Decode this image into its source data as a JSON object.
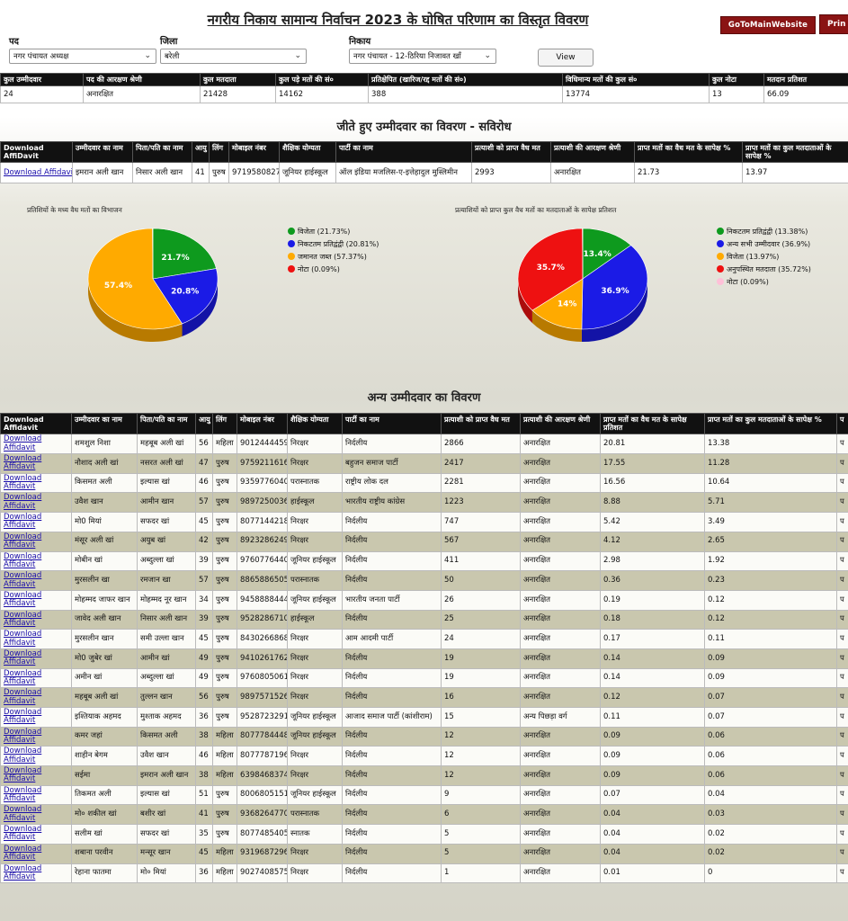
{
  "header": {
    "title": "नगरीय निकाय सामान्य निर्वाचन 2023 के घोषित परिणाम का विस्तृत विवरण",
    "main_website_label": "GoToMainWebsite",
    "print_label": "Prin"
  },
  "filters": {
    "post_label": "पद",
    "post_value": "नगर पंचायत अध्यक्ष",
    "district_label": "जिला",
    "district_value": "बरेली",
    "body_label": "निकाय",
    "body_value": "नगर पंचायत - 12-ठिरिया निजावत खाँ",
    "view_label": "View"
  },
  "summary": {
    "headers": [
      "कुल उम्मीदवार",
      "पद की आरक्षण श्रेणी",
      "कुल मतदाता",
      "कुल पड़े मतों की सं०",
      "प्रतिक्षेपित (खारिज/रद्द मतों की सं०)",
      "विधिमान्य मतों की कुल सं०",
      "कुल नोटा",
      "मतदान प्रतिशत"
    ],
    "values": [
      "24",
      "अनारक्षित",
      "21428",
      "14162",
      "388",
      "13774",
      "13",
      "66.09"
    ]
  },
  "winner_section_title": "जीते हुए उम्मीदवार का विवरण - सविरोध",
  "winner": {
    "headers": [
      "Download AffiDavit",
      "उम्मीदवार का नाम",
      "पिता/पति का नाम",
      "आयु",
      "लिंग",
      "मोबाइल नंबर",
      "शैक्षिक योग्यता",
      "पार्टी का नाम",
      "प्रत्याशी को प्राप्त वैध मत",
      "प्रत्याशी की आरक्षण श्रेणी",
      "प्राप्त मतों का वैध मत के सापेक्ष %",
      "प्राप्त मतों का कुल मतदाताओं के सापेक्ष %"
    ],
    "row": [
      "Download Affidavit",
      "इमरान अली खान",
      "निसार अली खान",
      "41",
      "पुरुष",
      "9719580827",
      "जूनियर हाईस्कूल",
      "ऑल इंडिया मजलिस-ए-इत्तेहादुल मुस्लिमीन",
      "2993",
      "अनारक्षित",
      "21.73",
      "13.97"
    ]
  },
  "chart_data": [
    {
      "type": "pie",
      "title": "प्रतिशियों के मध्य वैध मतों का विभाजन",
      "legend": "right",
      "labels": [
        "विजेता (21.73%)",
        "निकटतम प्रतिद्वंद्वी (20.81%)",
        "जमानत जब्त (57.37%)",
        "नोटा (0.09%)"
      ],
      "values": [
        21.73,
        20.81,
        57.37,
        0.09
      ],
      "slice_labels": [
        "21.7%",
        "20.8%",
        "57.4%",
        ""
      ],
      "colors": [
        "#0e9a1e",
        "#1b1be6",
        "#ffaa00",
        "#ee1111"
      ]
    },
    {
      "type": "pie",
      "title": "प्रत्याशियों को प्राप्त कुल वैध मतों का मतदाताओं के सापेक्ष प्रतिशत",
      "legend": "right",
      "labels": [
        "निकटतम प्रतिद्वंद्वी (13.38%)",
        "अन्य सभी उम्मीदवार (36.9%)",
        "विजेता (13.97%)",
        "अनुपस्थित मतदाता (35.72%)",
        "नोटा (0.09%)"
      ],
      "values": [
        13.38,
        36.9,
        13.97,
        35.72,
        0.09
      ],
      "slice_labels": [
        "13.4%",
        "36.9%",
        "14%",
        "35.7%",
        ""
      ],
      "colors": [
        "#0e9a1e",
        "#1b1be6",
        "#ffaa00",
        "#ee1111",
        "#ffc0d8"
      ]
    }
  ],
  "others_section_title": "अन्य उम्मीदवार का विवरण",
  "others": {
    "headers": [
      "Download Affidavit",
      "उम्मीदवार का नाम",
      "पिता/पति का नाम",
      "आयु",
      "लिंग",
      "मोबाइल नंबर",
      "शैक्षिक योग्यता",
      "पार्टी का नाम",
      "प्रत्याशी को प्राप्त वैध मत",
      "प्रत्याशी की आरक्षण श्रेणी",
      "प्राप्त मतों का वैध मत के सापेक्ष प्रतिशत",
      "प्राप्त मतों का कुल मतदाताओं के सापेक्ष %",
      "प"
    ],
    "rows": [
      [
        "Download Affidavit",
        "शमशुल निशा",
        "महबूब अली खां",
        "56",
        "महिला",
        "9012444459",
        "निरक्षर",
        "निर्दलीय",
        "2866",
        "अनारक्षित",
        "20.81",
        "13.38",
        "प"
      ],
      [
        "Download Affidavit",
        "नौशाद अली खां",
        "नसरत अली खां",
        "47",
        "पुरुष",
        "9759211616",
        "निरक्षर",
        "बहुजन समाज पार्टी",
        "2417",
        "अनारक्षित",
        "17.55",
        "11.28",
        "प"
      ],
      [
        "Download Affidavit",
        "किसमत अली",
        "इल्यास खां",
        "46",
        "पुरुष",
        "9359776040",
        "परास्नातक",
        "राष्ट्रीय लोक दल",
        "2281",
        "अनारक्षित",
        "16.56",
        "10.64",
        "प"
      ],
      [
        "Download Affidavit",
        "उवैश खान",
        "आमीन खान",
        "57",
        "पुरुष",
        "9897250036",
        "हाईस्कूल",
        "भारतीय राष्ट्रीय कांग्रेस",
        "1223",
        "अनारक्षित",
        "8.88",
        "5.71",
        "प"
      ],
      [
        "Download Affidavit",
        "मो0 मियां",
        "सफदर खां",
        "45",
        "पुरुष",
        "8077144218",
        "निरक्षर",
        "निर्दलीय",
        "747",
        "अनारक्षित",
        "5.42",
        "3.49",
        "प"
      ],
      [
        "Download Affidavit",
        "मंसूर अली खां",
        "अयुब खां",
        "42",
        "पुरुष",
        "8923286249",
        "निरक्षर",
        "निर्दलीय",
        "567",
        "अनारक्षित",
        "4.12",
        "2.65",
        "प"
      ],
      [
        "Download Affidavit",
        "मोबीन खां",
        "अब्दुल्ला खां",
        "39",
        "पुरुष",
        "9760776440",
        "जूनियर हाईस्कूल",
        "निर्दलीय",
        "411",
        "अनारक्षित",
        "2.98",
        "1.92",
        "प"
      ],
      [
        "Download Affidavit",
        "मुरसलीन खा",
        "रमजान खा",
        "57",
        "पुरुष",
        "8865886505",
        "परास्नातक",
        "निर्दलीय",
        "50",
        "अनारक्षित",
        "0.36",
        "0.23",
        "प"
      ],
      [
        "Download Affidavit",
        "मोहम्मद जाफर खान",
        "मोहम्मद नूर खान",
        "34",
        "पुरुष",
        "9458888444",
        "जूनियर हाईस्कूल",
        "भारतीय जनता पार्टी",
        "26",
        "अनारक्षित",
        "0.19",
        "0.12",
        "प"
      ],
      [
        "Download Affidavit",
        "जावेद अली खान",
        "निसार अली खान",
        "39",
        "पुरुष",
        "9528286710",
        "हाईस्कूल",
        "निर्दलीय",
        "25",
        "अनारक्षित",
        "0.18",
        "0.12",
        "प"
      ],
      [
        "Download Affidavit",
        "मुरसलीन खान",
        "समी उल्ला खान",
        "45",
        "पुरुष",
        "8430266868",
        "निरक्षर",
        "आम आदमी पार्टी",
        "24",
        "अनारक्षित",
        "0.17",
        "0.11",
        "प"
      ],
      [
        "Download Affidavit",
        "मो0 जुबेर खां",
        "आमीन खां",
        "49",
        "पुरुष",
        "9410261762",
        "निरक्षर",
        "निर्दलीय",
        "19",
        "अनारक्षित",
        "0.14",
        "0.09",
        "प"
      ],
      [
        "Download Affidavit",
        "अमीन खां",
        "अब्दुल्ला खां",
        "49",
        "पुरुष",
        "9760805061",
        "निरक्षर",
        "निर्दलीय",
        "19",
        "अनारक्षित",
        "0.14",
        "0.09",
        "प"
      ],
      [
        "Download Affidavit",
        "महबूब अली खां",
        "तुल्लन खान",
        "56",
        "पुरुष",
        "9897571526",
        "निरक्षर",
        "निर्दलीय",
        "16",
        "अनारक्षित",
        "0.12",
        "0.07",
        "प"
      ],
      [
        "Download Affidavit",
        "इश्तियाक अहमद",
        "मुश्ताक अहमद",
        "36",
        "पुरुष",
        "9528723291",
        "जूनियर हाईस्कूल",
        "आजाद समाज पार्टी (कांशीराम)",
        "15",
        "अन्य पिछड़ा वर्ग",
        "0.11",
        "0.07",
        "प"
      ],
      [
        "Download Affidavit",
        "कमर जहां",
        "किसमत अली",
        "38",
        "महिला",
        "8077784448",
        "जूनियर हाईस्कूल",
        "निर्दलीय",
        "12",
        "अनारक्षित",
        "0.09",
        "0.06",
        "प"
      ],
      [
        "Download Affidavit",
        "शाहीन बेगम",
        "उवैश खान",
        "46",
        "महिला",
        "8077787196",
        "निरक्षर",
        "निर्दलीय",
        "12",
        "अनारक्षित",
        "0.09",
        "0.06",
        "प"
      ],
      [
        "Download Affidavit",
        "सईमा",
        "इमरान अली खान",
        "38",
        "महिला",
        "6398468374",
        "निरक्षर",
        "निर्दलीय",
        "12",
        "अनारक्षित",
        "0.09",
        "0.06",
        "प"
      ],
      [
        "Download Affidavit",
        "तिकमत अली",
        "इल्यास खां",
        "51",
        "पुरुष",
        "8006805151",
        "जूनियर हाईस्कूल",
        "निर्दलीय",
        "9",
        "अनारक्षित",
        "0.07",
        "0.04",
        "प"
      ],
      [
        "Download Affidavit",
        "मो० शकील खां",
        "बशीर खां",
        "41",
        "पुरुष",
        "9368264770",
        "परास्नातक",
        "निर्दलीय",
        "6",
        "अनारक्षित",
        "0.04",
        "0.03",
        "प"
      ],
      [
        "Download Affidavit",
        "सलीम खां",
        "सफदर खां",
        "35",
        "पुरुष",
        "8077485405",
        "स्नातक",
        "निर्दलीय",
        "5",
        "अनारक्षित",
        "0.04",
        "0.02",
        "प"
      ],
      [
        "Download Affidavit",
        "शबाना परवीन",
        "मन्सूर खान",
        "45",
        "महिला",
        "9319687296",
        "निरक्षर",
        "निर्दलीय",
        "5",
        "अनारक्षित",
        "0.04",
        "0.02",
        "प"
      ],
      [
        "Download Affidavit",
        "रेहाना फातमा",
        "मो० मियां",
        "36",
        "महिला",
        "9027408575",
        "निरक्षर",
        "निर्दलीय",
        "1",
        "अनारक्षित",
        "0.01",
        "0",
        "प"
      ]
    ]
  }
}
